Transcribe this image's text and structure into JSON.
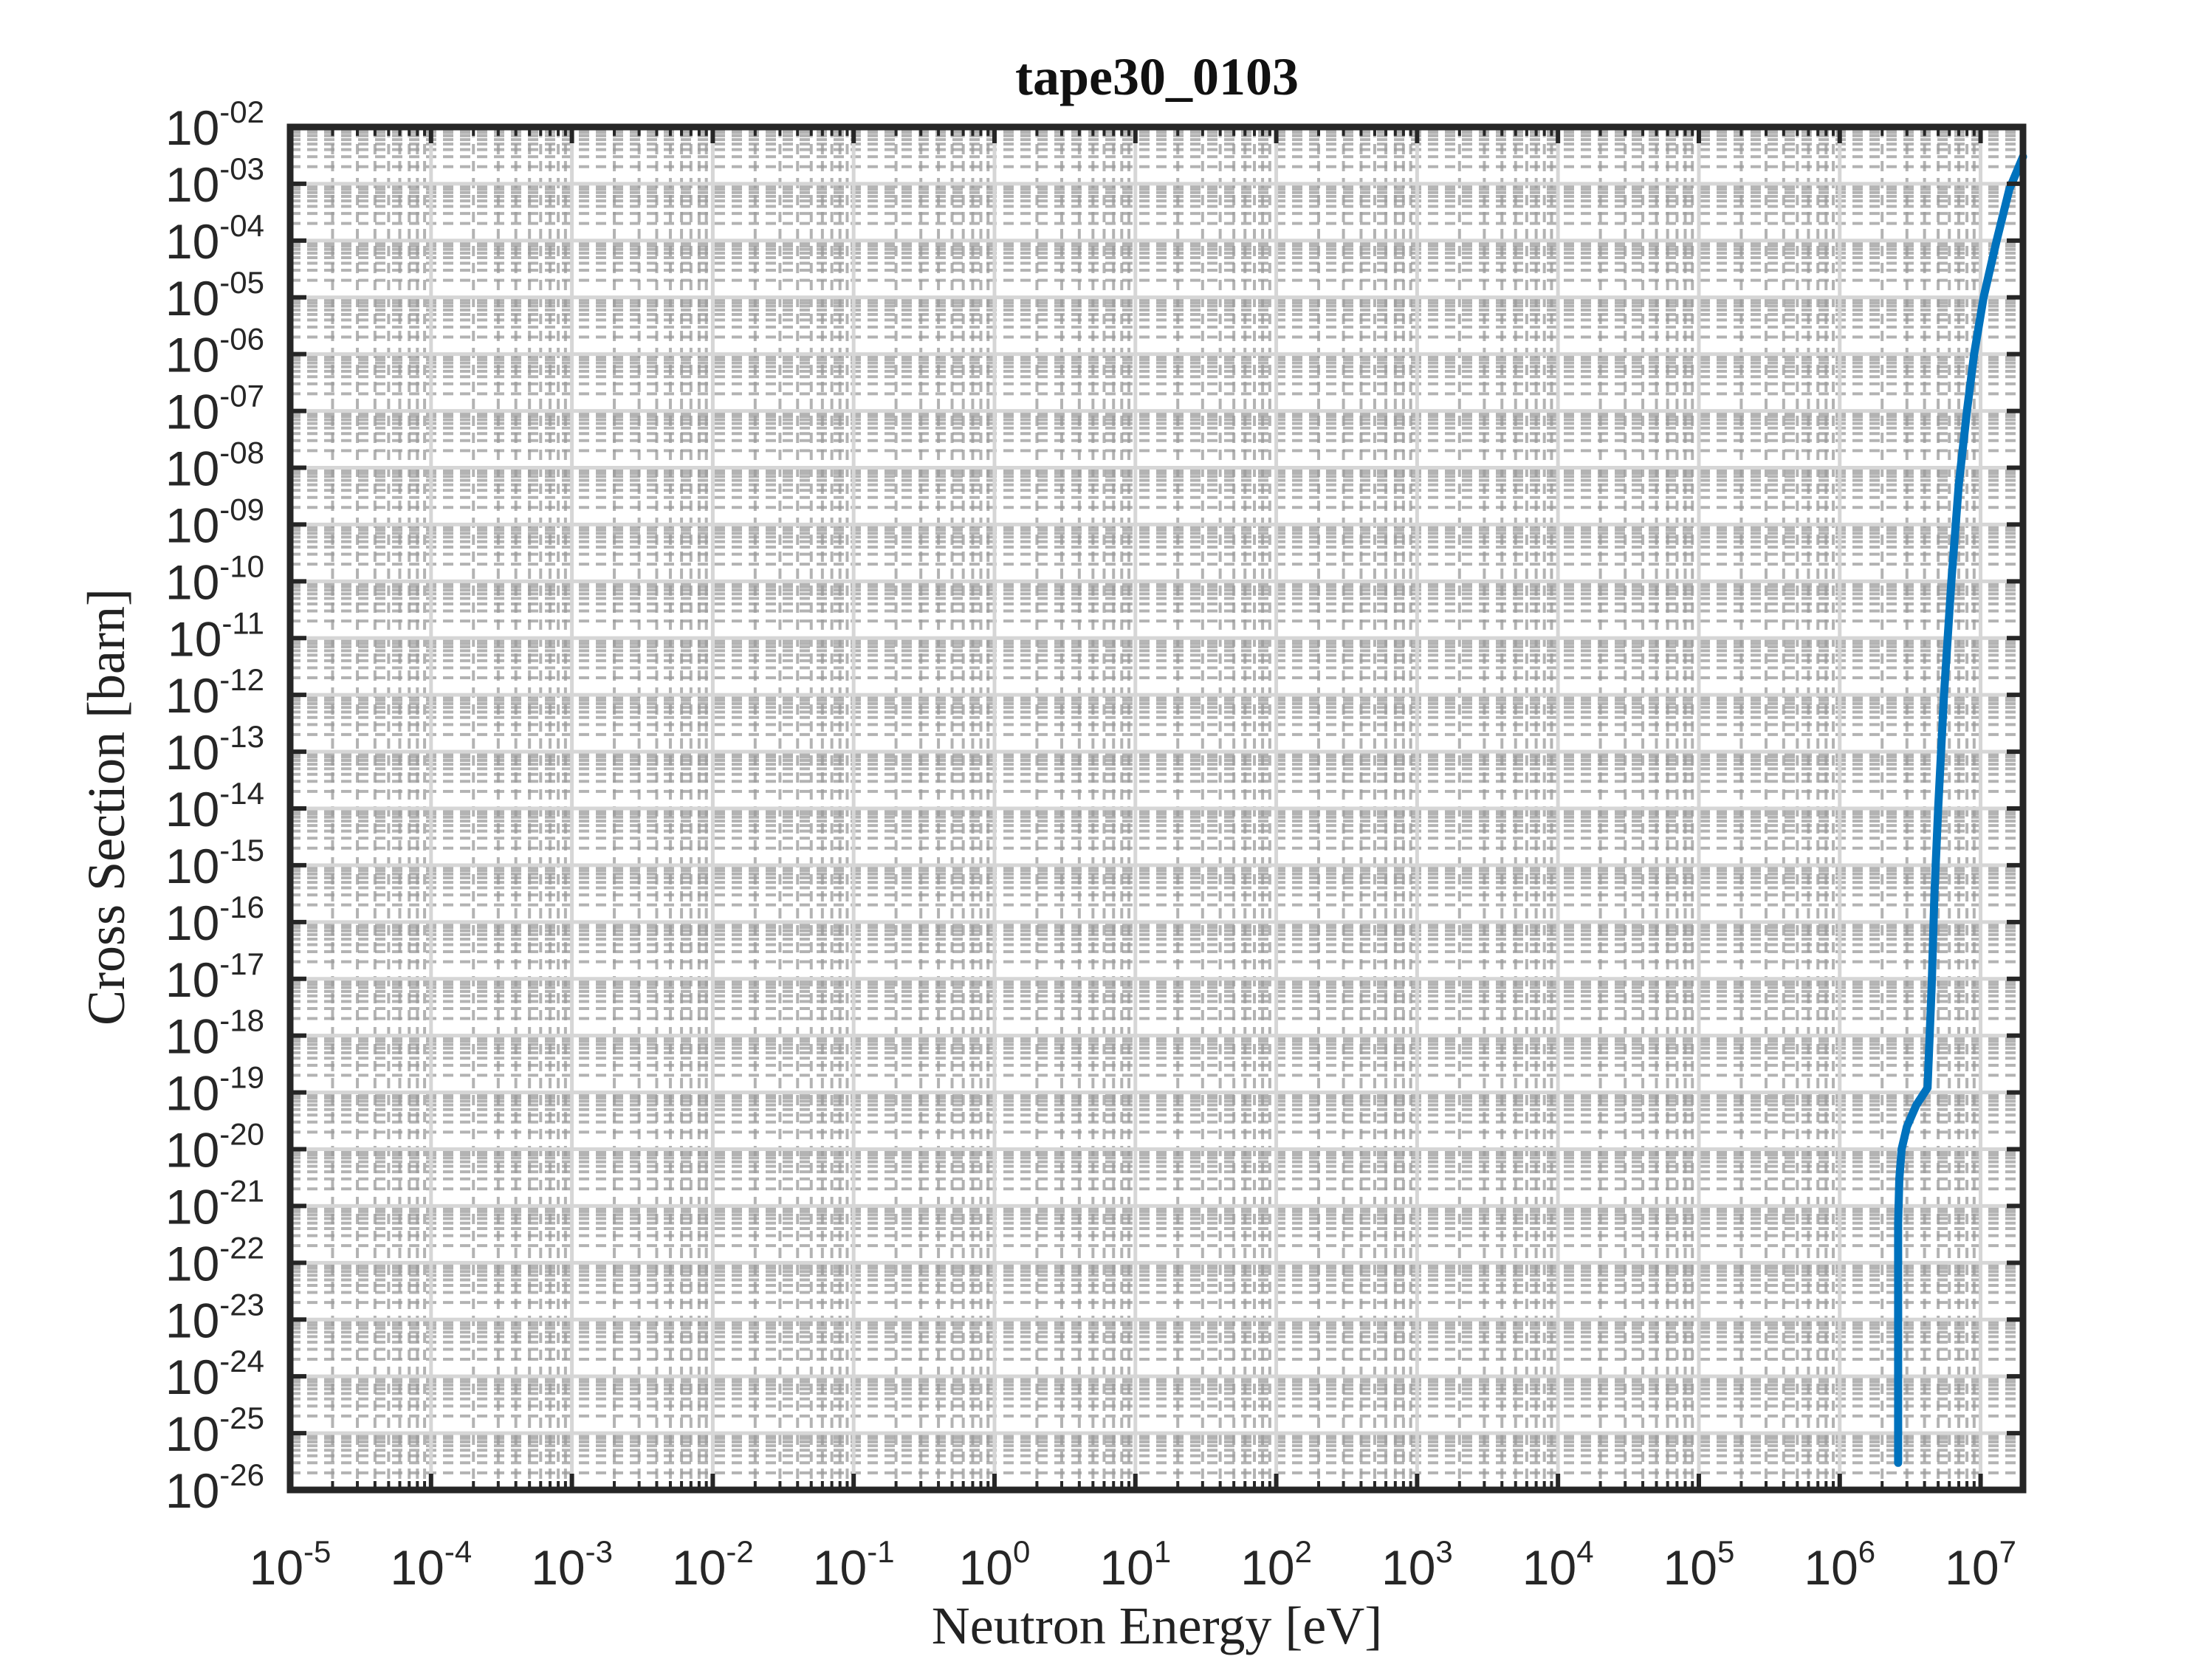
{
  "chart_data": {
    "type": "line",
    "title": "tape30_0103",
    "xlabel": "Neutron Energy [eV]",
    "ylabel": "Cross Section [barn]",
    "xscale": "log",
    "yscale": "log",
    "xlim": [
      1e-05,
      20000000.0
    ],
    "ylim": [
      1e-26,
      0.01
    ],
    "grid": true,
    "minor_grid": true,
    "x_ticks": [
      {
        "base": "10",
        "exp": "-5",
        "value": 1e-05
      },
      {
        "base": "10",
        "exp": "-4",
        "value": 0.0001
      },
      {
        "base": "10",
        "exp": "-3",
        "value": 0.001
      },
      {
        "base": "10",
        "exp": "-2",
        "value": 0.01
      },
      {
        "base": "10",
        "exp": "-1",
        "value": 0.1
      },
      {
        "base": "10",
        "exp": "0",
        "value": 1.0
      },
      {
        "base": "10",
        "exp": "1",
        "value": 10.0
      },
      {
        "base": "10",
        "exp": "2",
        "value": 100.0
      },
      {
        "base": "10",
        "exp": "3",
        "value": 1000.0
      },
      {
        "base": "10",
        "exp": "4",
        "value": 10000.0
      },
      {
        "base": "10",
        "exp": "5",
        "value": 100000.0
      },
      {
        "base": "10",
        "exp": "6",
        "value": 1000000.0
      },
      {
        "base": "10",
        "exp": "7",
        "value": 10000000.0
      }
    ],
    "y_ticks": [
      {
        "base": "10",
        "exp": "-26",
        "value": 1e-26
      },
      {
        "base": "10",
        "exp": "-25",
        "value": 1e-25
      },
      {
        "base": "10",
        "exp": "-24",
        "value": 1e-24
      },
      {
        "base": "10",
        "exp": "-23",
        "value": 1e-23
      },
      {
        "base": "10",
        "exp": "-22",
        "value": 1e-22
      },
      {
        "base": "10",
        "exp": "-21",
        "value": 1e-21
      },
      {
        "base": "10",
        "exp": "-20",
        "value": 1e-20
      },
      {
        "base": "10",
        "exp": "-19",
        "value": 1e-19
      },
      {
        "base": "10",
        "exp": "-18",
        "value": 1e-18
      },
      {
        "base": "10",
        "exp": "-17",
        "value": 1e-17
      },
      {
        "base": "10",
        "exp": "-16",
        "value": 1e-16
      },
      {
        "base": "10",
        "exp": "-15",
        "value": 1e-15
      },
      {
        "base": "10",
        "exp": "-14",
        "value": 1e-14
      },
      {
        "base": "10",
        "exp": "-13",
        "value": 1e-13
      },
      {
        "base": "10",
        "exp": "-12",
        "value": 1e-12
      },
      {
        "base": "10",
        "exp": "-11",
        "value": 1e-11
      },
      {
        "base": "10",
        "exp": "-10",
        "value": 1e-10
      },
      {
        "base": "10",
        "exp": "-09",
        "value": 1e-09
      },
      {
        "base": "10",
        "exp": "-08",
        "value": 1e-08
      },
      {
        "base": "10",
        "exp": "-07",
        "value": 1e-07
      },
      {
        "base": "10",
        "exp": "-06",
        "value": 1e-06
      },
      {
        "base": "10",
        "exp": "-05",
        "value": 1e-05
      },
      {
        "base": "10",
        "exp": "-04",
        "value": 0.0001
      },
      {
        "base": "10",
        "exp": "-03",
        "value": 0.001
      },
      {
        "base": "10",
        "exp": "-02",
        "value": 0.01
      }
    ],
    "series": [
      {
        "color": "#0072BD",
        "x": [
          2600000.0,
          2600000.0,
          2650000.0,
          2750000.0,
          3000000.0,
          3500000.0,
          4200000.0,
          4500000.0,
          4700000.0,
          5000000.0,
          5500000.0,
          6200000.0,
          7000000.0,
          8000000.0,
          9000000.0,
          10500000.0,
          13000000.0,
          16000000.0,
          20000000.0
        ],
        "y": [
          3e-26,
          5e-22,
          3e-21,
          1e-20,
          2.5e-20,
          6e-20,
          1.2e-19,
          8e-18,
          3e-16,
          1e-14,
          1e-12,
          1e-10,
          5e-09,
          1e-07,
          1e-06,
          1e-05,
          0.0001,
          0.0008,
          0.003
        ]
      }
    ]
  }
}
